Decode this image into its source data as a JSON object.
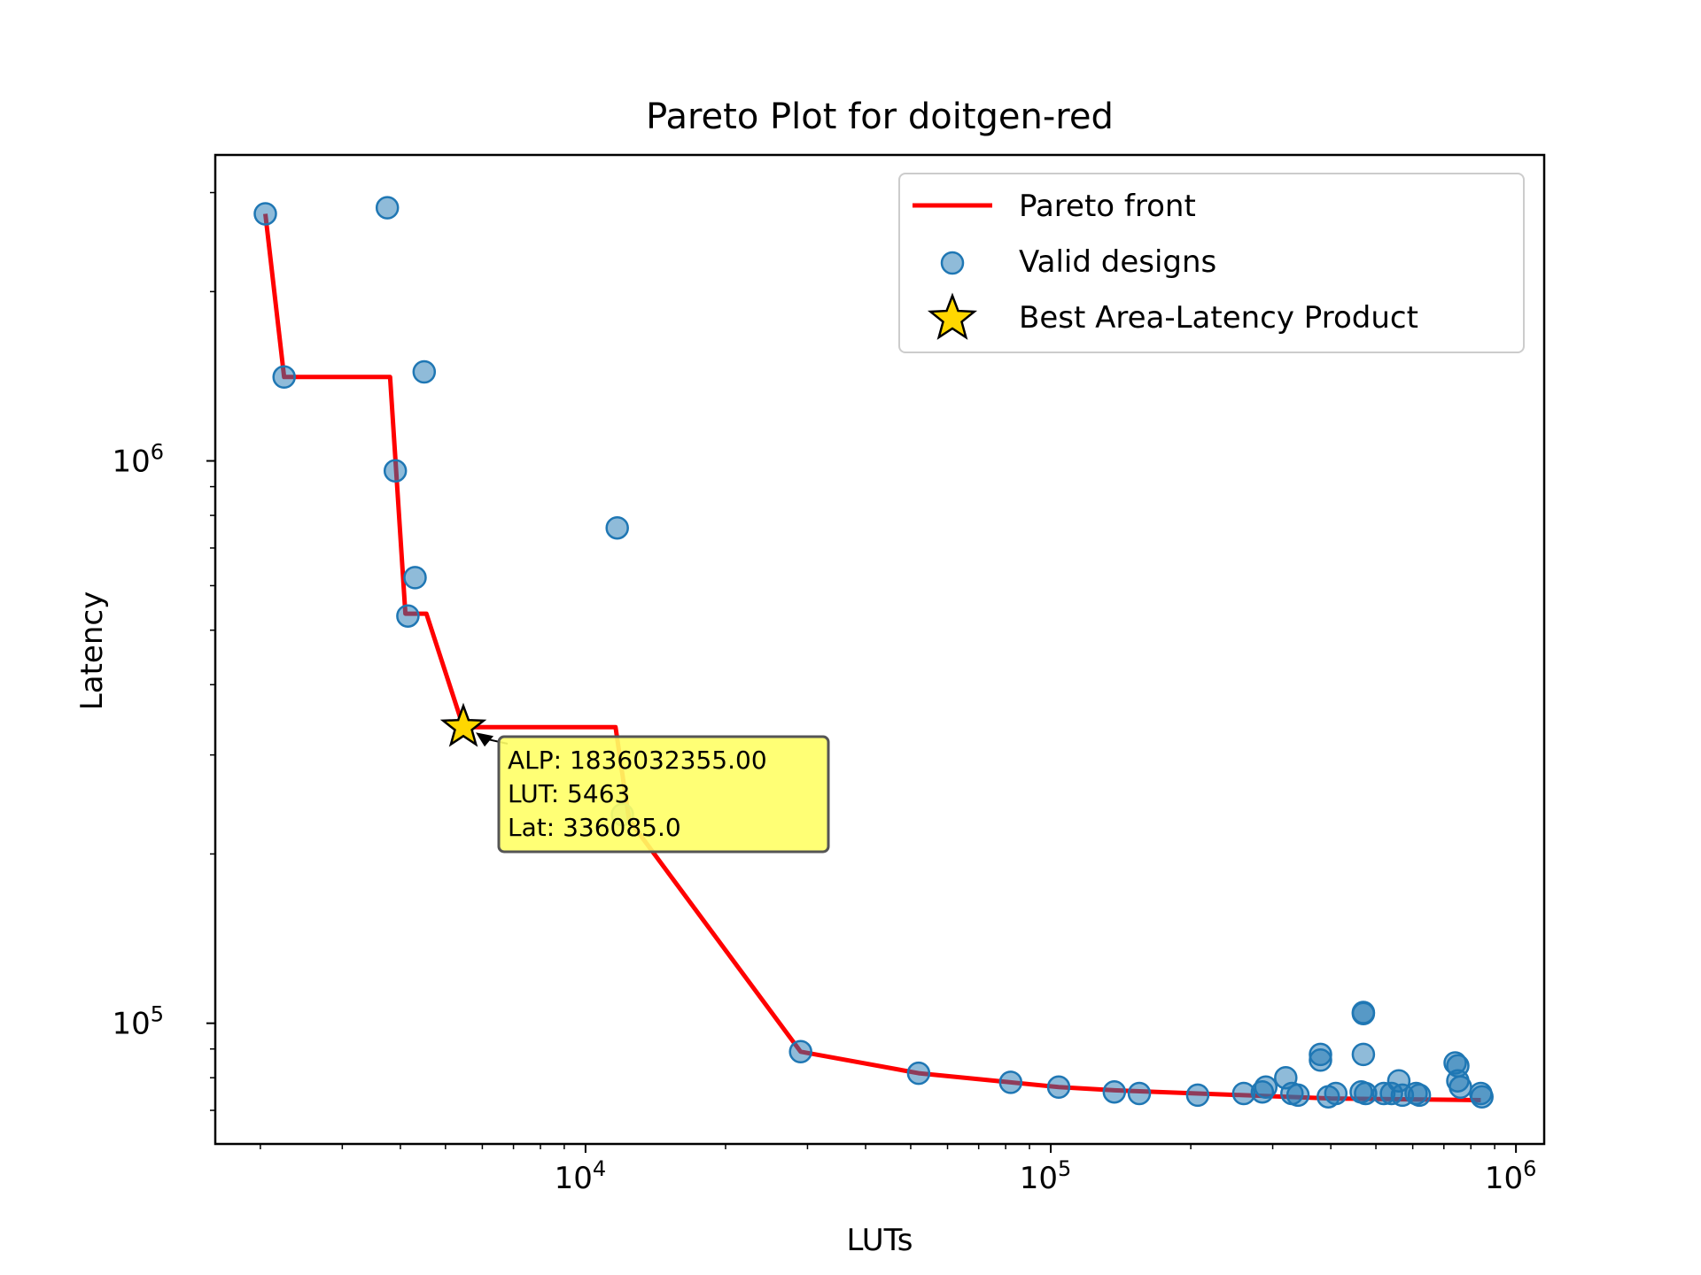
{
  "chart_data": {
    "type": "scatter",
    "title": "Pareto Plot for doitgen-red",
    "xlabel": "LUTs",
    "ylabel": "Latency",
    "x_scale": "log",
    "y_scale": "log",
    "xlim": [
      1600,
      1150000
    ],
    "ylim": [
      61000,
      3500000
    ],
    "grid": false,
    "legend_position": "top-right",
    "x_ticks": [
      {
        "value": 10000,
        "base": "10",
        "exp": "4"
      },
      {
        "value": 100000,
        "base": "10",
        "exp": "5"
      },
      {
        "value": 1000000,
        "base": "10",
        "exp": "6"
      }
    ],
    "y_ticks": [
      {
        "value": 100000,
        "base": "10",
        "exp": "5"
      },
      {
        "value": 1000000,
        "base": "10",
        "exp": "6"
      }
    ],
    "series": [
      {
        "name": "Pareto front",
        "kind": "line",
        "color": "#ff0000",
        "points": [
          [
            2050,
            2750000
          ],
          [
            2250,
            1410000
          ],
          [
            3800,
            1410000
          ],
          [
            4100,
            535000
          ],
          [
            4550,
            535000
          ],
          [
            5463,
            336085
          ],
          [
            11600,
            336085
          ],
          [
            12400,
            230000
          ],
          [
            29000,
            89000
          ],
          [
            52000,
            81500
          ],
          [
            82000,
            78500
          ],
          [
            104000,
            77000
          ],
          [
            137000,
            76000
          ],
          [
            207000,
            75000
          ],
          [
            400000,
            73500
          ],
          [
            840000,
            73000
          ]
        ]
      },
      {
        "name": "Valid designs",
        "kind": "scatter",
        "color": "#1f77b4",
        "points": [
          [
            2050,
            2750000
          ],
          [
            2250,
            1410000
          ],
          [
            3750,
            2820000
          ],
          [
            4500,
            1440000
          ],
          [
            3900,
            960000
          ],
          [
            4300,
            620000
          ],
          [
            4150,
            530000
          ],
          [
            11700,
            760000
          ],
          [
            12000,
            235000
          ],
          [
            29000,
            89000
          ],
          [
            52000,
            81500
          ],
          [
            82000,
            78500
          ],
          [
            104000,
            77000
          ],
          [
            137000,
            75500
          ],
          [
            155000,
            75000
          ],
          [
            207000,
            74500
          ],
          [
            260000,
            75000
          ],
          [
            285000,
            75500
          ],
          [
            290000,
            77000
          ],
          [
            320000,
            80000
          ],
          [
            330000,
            75000
          ],
          [
            340000,
            74500
          ],
          [
            380000,
            86000
          ],
          [
            380000,
            88000
          ],
          [
            395000,
            74000
          ],
          [
            410000,
            75000
          ],
          [
            465000,
            75500
          ],
          [
            470000,
            104000
          ],
          [
            470000,
            104500
          ],
          [
            470000,
            88000
          ],
          [
            475000,
            75000
          ],
          [
            520000,
            75000
          ],
          [
            540000,
            75000
          ],
          [
            560000,
            79000
          ],
          [
            570000,
            74500
          ],
          [
            610000,
            75000
          ],
          [
            620000,
            74500
          ],
          [
            740000,
            85000
          ],
          [
            750000,
            84000
          ],
          [
            750000,
            79000
          ],
          [
            760000,
            77000
          ],
          [
            840000,
            75000
          ],
          [
            845000,
            74000
          ]
        ]
      },
      {
        "name": "Best Area-Latency Product",
        "kind": "marker",
        "color": "#ffd700",
        "points": [
          [
            5463,
            336085
          ]
        ]
      }
    ],
    "annotation": {
      "lines": [
        "ALP: 1836032355.00",
        "LUT: 5463",
        "Lat: 336085.0"
      ],
      "box_color": "#ffff66"
    }
  }
}
